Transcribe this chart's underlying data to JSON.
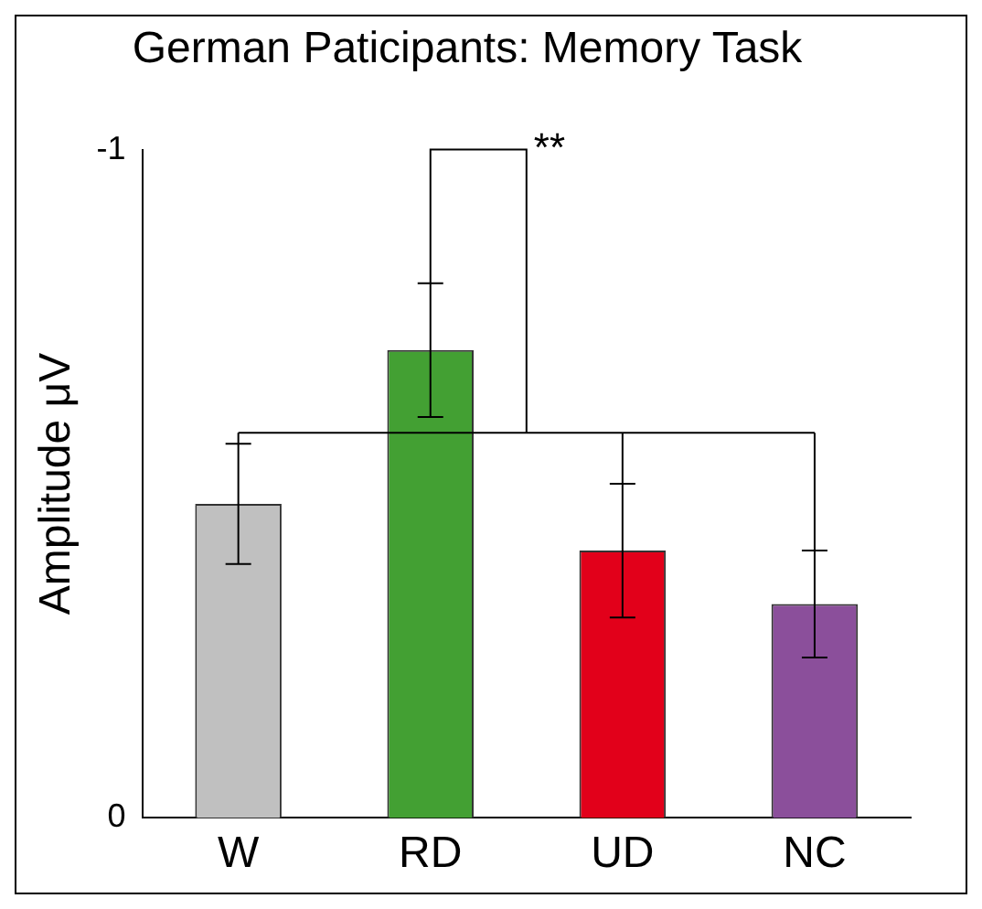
{
  "chart_data": {
    "type": "bar",
    "title": "German Paticipants: Memory Task",
    "ylabel": "Amplitude μV",
    "categories": [
      "W",
      "RD",
      "UD",
      "NC"
    ],
    "values": [
      -0.47,
      -0.7,
      -0.4,
      -0.32
    ],
    "errors": [
      0.09,
      0.1,
      0.1,
      0.08
    ],
    "colors": [
      "#c0c0c0",
      "#43a033",
      "#e2001a",
      "#8b4f9b"
    ],
    "ylim": [
      0,
      -1
    ],
    "yticks": [
      0,
      -1
    ],
    "grid": false,
    "legend": false,
    "annotations": [
      "**"
    ]
  }
}
